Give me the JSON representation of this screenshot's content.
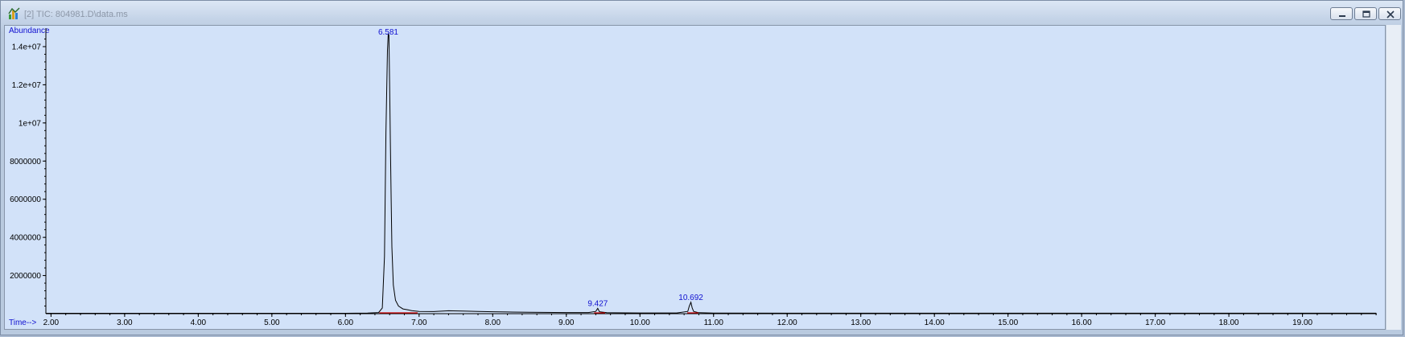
{
  "window": {
    "title": "[2] TIC: 804981.D\\data.ms",
    "controls": [
      "minimize-icon",
      "restore-icon",
      "close-icon"
    ]
  },
  "colors": {
    "plot_background": "#d2e2f9",
    "trace": "#000000",
    "label_text": "#1010d0",
    "baseline_marker": "#cc0000"
  },
  "chart_data": {
    "type": "line",
    "ylabel": "Abundance",
    "xlabel": "Time-->",
    "xlim": [
      1.93,
      20.01
    ],
    "ylim": [
      0,
      14800000
    ],
    "x_ticks": [
      "2.00",
      "3.00",
      "4.00",
      "5.00",
      "6.00",
      "7.00",
      "8.00",
      "9.00",
      "10.00",
      "11.00",
      "12.00",
      "13.00",
      "14.00",
      "15.00",
      "16.00",
      "17.00",
      "18.00",
      "19.00"
    ],
    "y_ticks": [
      "2000000",
      "4000000",
      "6000000",
      "8000000",
      "1e+07",
      "1.2e+07",
      "1.4e+07"
    ],
    "x_tick_values": [
      2,
      3,
      4,
      5,
      6,
      7,
      8,
      9,
      10,
      11,
      12,
      13,
      14,
      15,
      16,
      17,
      18,
      19
    ],
    "y_tick_values": [
      2000000,
      4000000,
      6000000,
      8000000,
      10000000,
      12000000,
      14000000
    ],
    "series": [
      {
        "x": [
          1.93,
          2.5,
          3.0,
          4.0,
          5.0,
          6.0,
          6.3,
          6.45,
          6.5,
          6.53,
          6.55,
          6.57,
          6.581,
          6.59,
          6.6,
          6.61,
          6.62,
          6.63,
          6.65,
          6.68,
          6.72,
          6.78,
          6.85,
          6.9,
          6.95,
          7.0,
          7.2,
          7.4,
          7.6,
          7.8,
          8.0,
          8.2,
          8.5,
          9.0,
          9.3,
          9.4,
          9.427,
          9.45,
          9.55,
          10.0,
          10.5,
          10.65,
          10.67,
          10.692,
          10.71,
          10.73,
          10.8,
          11.0,
          12.0,
          13.0,
          14.0,
          15.0,
          16.0,
          17.0,
          18.0,
          19.0,
          20.0
        ],
        "y": [
          20000,
          20000,
          20000,
          20000,
          20000,
          20000,
          30000,
          60000,
          300000,
          3000000,
          9500000,
          13800000,
          14700000,
          14600000,
          12000000,
          9000000,
          6000000,
          3500000,
          1500000,
          700000,
          400000,
          250000,
          200000,
          160000,
          140000,
          120000,
          110000,
          150000,
          140000,
          120000,
          100000,
          90000,
          70000,
          60000,
          60000,
          120000,
          280000,
          100000,
          50000,
          40000,
          40000,
          120000,
          400000,
          600000,
          300000,
          120000,
          50000,
          30000,
          25000,
          25000,
          25000,
          25000,
          25000,
          25000,
          25000,
          25000,
          25000
        ]
      }
    ],
    "peaks": [
      {
        "rt": 6.581,
        "label": "6.581",
        "abundance": 14700000
      },
      {
        "rt": 9.427,
        "label": "9.427",
        "abundance": 280000
      },
      {
        "rt": 10.692,
        "label": "10.692",
        "abundance": 600000
      }
    ],
    "grid": false
  }
}
